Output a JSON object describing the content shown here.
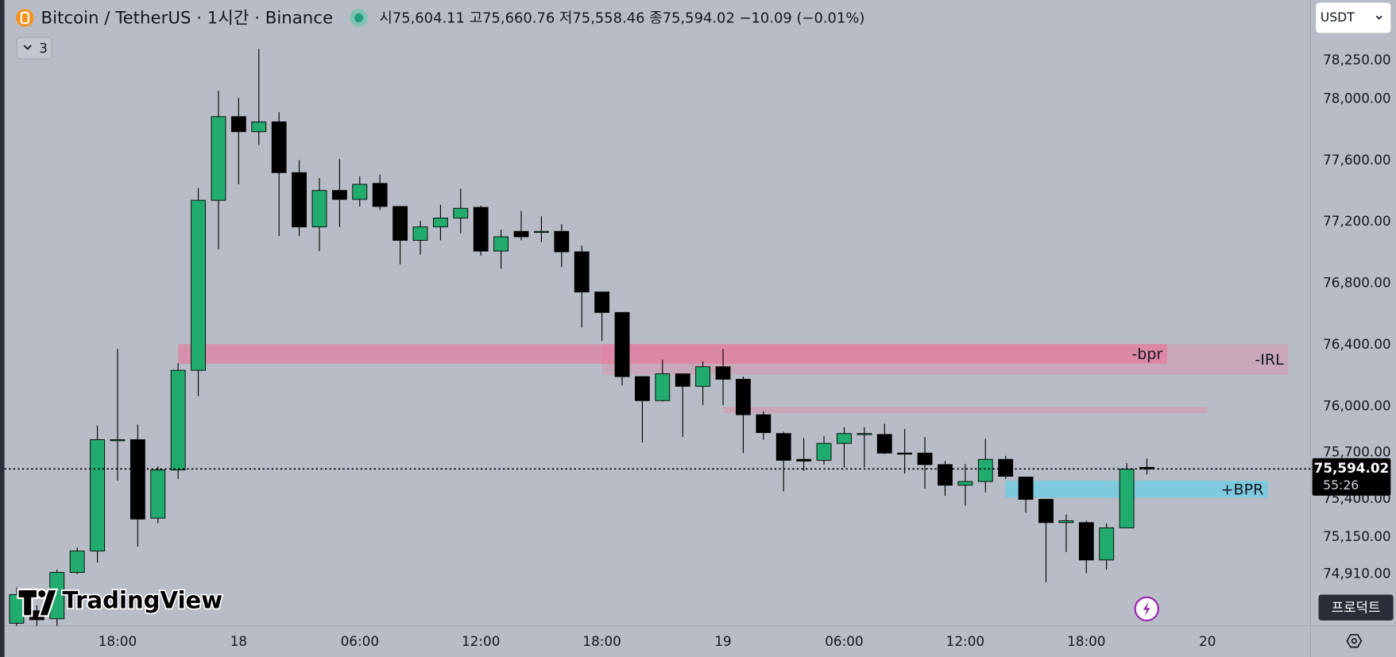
{
  "header": {
    "symbol": "Bitcoin / TetherUS · 1시간 · Binance",
    "ohlc": "시75,604.11 고75,660.76 저75,558.46 종75,594.02 −10.09 (−0.01%)",
    "currency": "USDT",
    "indicators": "3",
    "product_button": "프로덕트",
    "logo": "TradingView"
  },
  "chart_data": {
    "type": "candlestick",
    "categories": [
      null,
      null,
      null,
      null,
      null,
      "18:00",
      null,
      null,
      null,
      null,
      null,
      "18",
      null,
      null,
      null,
      null,
      null,
      "06:00",
      null,
      null,
      null,
      null,
      null,
      "12:00",
      null,
      null,
      null,
      null,
      null,
      "18:00",
      null,
      null,
      null,
      null,
      null,
      "19",
      null,
      null,
      null,
      null,
      null,
      "06:00",
      null,
      null,
      null,
      null,
      null,
      "12:00",
      null,
      null,
      null,
      null,
      null,
      "18:00",
      null,
      null,
      null,
      null,
      null,
      "20",
      null,
      null,
      null,
      null
    ],
    "open": [
      74591,
      74672,
      74620,
      74921,
      75060,
      75778,
      75784,
      75274,
      75587,
      76235,
      77340,
      77884,
      77786,
      77850,
      77520,
      77167,
      77404,
      77346,
      77450,
      77300,
      77080,
      77167,
      77225,
      77294,
      77010,
      77138,
      77132,
      77138,
      77005,
      76744,
      76611,
      76194,
      76038,
      76212,
      76131,
      76258,
      76177,
      75946,
      75824,
      75656,
      75650,
      75760,
      75818,
      75818,
      75697,
      75697,
      75622,
      75488,
      75512,
      75656,
      75541,
      75396,
      75245,
      75245,
      75002,
      75211,
      75604.11,
      null,
      null,
      null,
      null,
      null,
      null,
      null
    ],
    "high": [
      74823,
      74707,
      74940,
      75083,
      75876,
      76374,
      75882,
      75610,
      76281,
      77421,
      78052,
      78006,
      78324,
      77913,
      77601,
      77485,
      77607,
      77497,
      77508,
      77300,
      77207,
      77311,
      77416,
      77306,
      77149,
      77271,
      77236,
      77184,
      77045,
      76744,
      76611,
      76194,
      76304,
      76212,
      76293,
      76374,
      76194,
      75969,
      75836,
      75795,
      75807,
      75865,
      75865,
      75888,
      75853,
      75801,
      75645,
      75627,
      75789,
      75679,
      75541,
      75396,
      75298,
      75257,
      75240,
      75633,
      75660.76,
      null,
      null,
      null,
      null,
      null,
      null,
      null
    ],
    "low": [
      74560,
      74560,
      74560,
      74910,
      74985,
      75517,
      75089,
      75240,
      75529,
      76067,
      77022,
      77444,
      77699,
      77109,
      77109,
      77010,
      77167,
      77300,
      77277,
      76924,
      76987,
      77080,
      77126,
      76981,
      76895,
      77080,
      77068,
      76906,
      76513,
      76426,
      76137,
      75766,
      76032,
      75801,
      76009,
      76009,
      75697,
      75784,
      75448,
      75581,
      75622,
      75604,
      75604,
      75691,
      75564,
      75465,
      75419,
      75355,
      75442,
      75529,
      75309,
      74858,
      75054,
      74916,
      74939,
      75211,
      75558.46,
      null,
      null,
      null,
      null,
      null,
      null,
      null
    ],
    "close": [
      74777,
      74614,
      74921,
      75060,
      75784,
      75784,
      75268,
      75587,
      76235,
      77340,
      77884,
      77786,
      77850,
      77520,
      77167,
      77404,
      77346,
      77444,
      77300,
      77080,
      77167,
      77225,
      77288,
      77010,
      77103,
      77103,
      77138,
      77005,
      76744,
      76611,
      76194,
      76038,
      76212,
      76131,
      76258,
      76177,
      75946,
      75830,
      75650,
      75645,
      75760,
      75824,
      75824,
      75697,
      75691,
      75622,
      75488,
      75512,
      75656,
      75546,
      75396,
      75245,
      75257,
      75002,
      75211,
      75593,
      75594.02,
      null,
      null,
      null,
      null,
      null,
      null,
      null
    ],
    "up_color": "#22ab6e",
    "down_color": "#000000",
    "ylim": [
      74574,
      78642
    ],
    "yticks": [
      {
        "value": 78250,
        "label": "78,250.00"
      },
      {
        "value": 78000,
        "label": "78,000.00"
      },
      {
        "value": 77600,
        "label": "77,600.00"
      },
      {
        "value": 77200,
        "label": "77,200.00"
      },
      {
        "value": 76800,
        "label": "76,800.00"
      },
      {
        "value": 76400,
        "label": "76,400.00"
      },
      {
        "value": 76000,
        "label": "76,000.00"
      },
      {
        "value": 75700,
        "label": "75,700.00"
      },
      {
        "value": 75400,
        "label": "75,400.00"
      },
      {
        "value": 75150,
        "label": "75,150.00"
      },
      {
        "value": 74910,
        "label": "74,910.00"
      }
    ],
    "grid": false,
    "zones": [
      {
        "label": "-IRL",
        "from": 29,
        "to": 63,
        "top": 76405,
        "bottom": 76206,
        "color": "rgba(232,125,155,0.32)"
      },
      {
        "label": "-bpr",
        "from": 8,
        "to": 57,
        "top": 76405,
        "bottom": 76278,
        "color": "rgba(236,110,150,0.55)"
      },
      {
        "from": 35,
        "to": 59,
        "top": 75998,
        "bottom": 75957,
        "color": "rgba(236,120,155,0.35)"
      },
      {
        "label": "+BPR",
        "from": 49,
        "to": 62,
        "top": 75517,
        "bottom": 75407,
        "color": "rgba(105,205,228,0.75)"
      }
    ],
    "last_price_label": "75,594.02",
    "countdown": "55:26"
  }
}
